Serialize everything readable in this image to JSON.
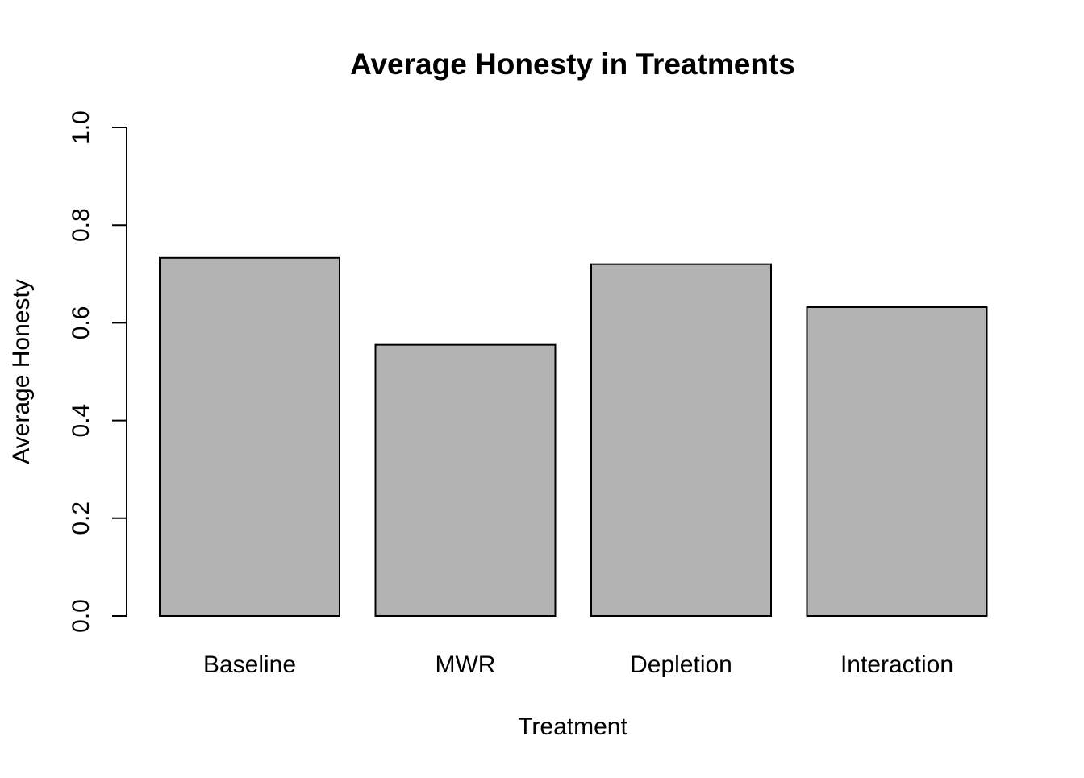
{
  "chart_data": {
    "type": "bar",
    "title": "Average Honesty in Treatments",
    "xlabel": "Treatment",
    "ylabel": "Average Honesty",
    "categories": [
      "Baseline",
      "MWR",
      "Depletion",
      "Interaction"
    ],
    "values": [
      0.733,
      0.555,
      0.72,
      0.632
    ],
    "ylim": [
      0,
      1
    ],
    "yticks": [
      "0.0",
      "0.2",
      "0.4",
      "0.6",
      "0.8",
      "1.0"
    ],
    "grid": false,
    "bar_color": "#b3b3b3",
    "bar_edge_color": "#000000"
  }
}
